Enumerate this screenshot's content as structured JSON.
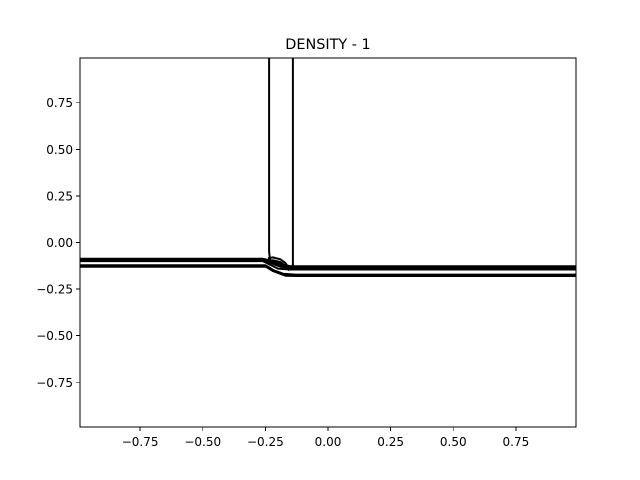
{
  "chart_data": {
    "type": "contour",
    "title": "DENSITY - 1",
    "xlabel": "",
    "ylabel": "",
    "xlim": [
      -0.99,
      0.99
    ],
    "ylim": [
      -0.99,
      0.99
    ],
    "grid": false,
    "legend": "none",
    "x_ticks": [
      -0.75,
      -0.5,
      -0.25,
      0.0,
      0.25,
      0.5,
      0.75
    ],
    "x_tick_labels": [
      "−0.75",
      "−0.50",
      "−0.25",
      "0.00",
      "0.25",
      "0.50",
      "0.75"
    ],
    "y_ticks": [
      0.75,
      0.5,
      0.25,
      0.0,
      -0.25,
      -0.5,
      -0.75
    ],
    "y_tick_labels": [
      "0.75",
      "0.50",
      "0.25",
      "0.00",
      "−0.25",
      "−0.50",
      "−0.75"
    ],
    "line_color": "#000000",
    "contours": [
      {
        "points": [
          [
            -0.99,
            -0.09
          ],
          [
            -0.26,
            -0.09
          ],
          [
            -0.23,
            -0.1
          ],
          [
            -0.19,
            -0.12
          ],
          [
            -0.15,
            -0.13
          ],
          [
            0.99,
            -0.13
          ]
        ]
      },
      {
        "points": [
          [
            -0.99,
            -0.095
          ],
          [
            -0.26,
            -0.095
          ],
          [
            -0.23,
            -0.11
          ],
          [
            -0.19,
            -0.13
          ],
          [
            -0.15,
            -0.135
          ],
          [
            0.99,
            -0.135
          ]
        ]
      },
      {
        "points": [
          [
            -0.99,
            -0.1
          ],
          [
            -0.26,
            -0.1
          ],
          [
            -0.23,
            -0.12
          ],
          [
            -0.2,
            -0.14
          ],
          [
            -0.15,
            -0.145
          ],
          [
            0.99,
            -0.145
          ]
        ]
      },
      {
        "points": [
          [
            -0.99,
            -0.125
          ],
          [
            -0.25,
            -0.125
          ],
          [
            -0.22,
            -0.15
          ],
          [
            -0.18,
            -0.17
          ],
          [
            -0.13,
            -0.175
          ],
          [
            0.99,
            -0.175
          ]
        ]
      },
      {
        "points": [
          [
            -0.99,
            -0.13
          ],
          [
            -0.24,
            -0.13
          ],
          [
            -0.21,
            -0.155
          ],
          [
            -0.17,
            -0.178
          ],
          [
            -0.12,
            -0.18
          ],
          [
            0.99,
            -0.18
          ]
        ]
      },
      {
        "points": [
          [
            -0.235,
            0.99
          ],
          [
            -0.235,
            0.2
          ],
          [
            -0.235,
            -0.05
          ],
          [
            -0.232,
            -0.085
          ],
          [
            -0.23,
            -0.095
          ]
        ]
      },
      {
        "points": [
          [
            -0.14,
            0.99
          ],
          [
            -0.14,
            0.2
          ],
          [
            -0.14,
            -0.12
          ],
          [
            -0.145,
            -0.13
          ]
        ]
      },
      {
        "points": [
          [
            -0.24,
            -0.085
          ],
          [
            -0.22,
            -0.08
          ],
          [
            -0.19,
            -0.09
          ],
          [
            -0.17,
            -0.11
          ],
          [
            -0.16,
            -0.13
          ]
        ]
      },
      {
        "points": [
          [
            -0.245,
            -0.1
          ],
          [
            -0.22,
            -0.095
          ],
          [
            -0.19,
            -0.105
          ],
          [
            -0.17,
            -0.125
          ],
          [
            -0.155,
            -0.15
          ]
        ]
      }
    ],
    "line_widths": [
      3,
      2,
      2,
      3,
      2,
      2,
      2,
      2,
      2
    ]
  }
}
